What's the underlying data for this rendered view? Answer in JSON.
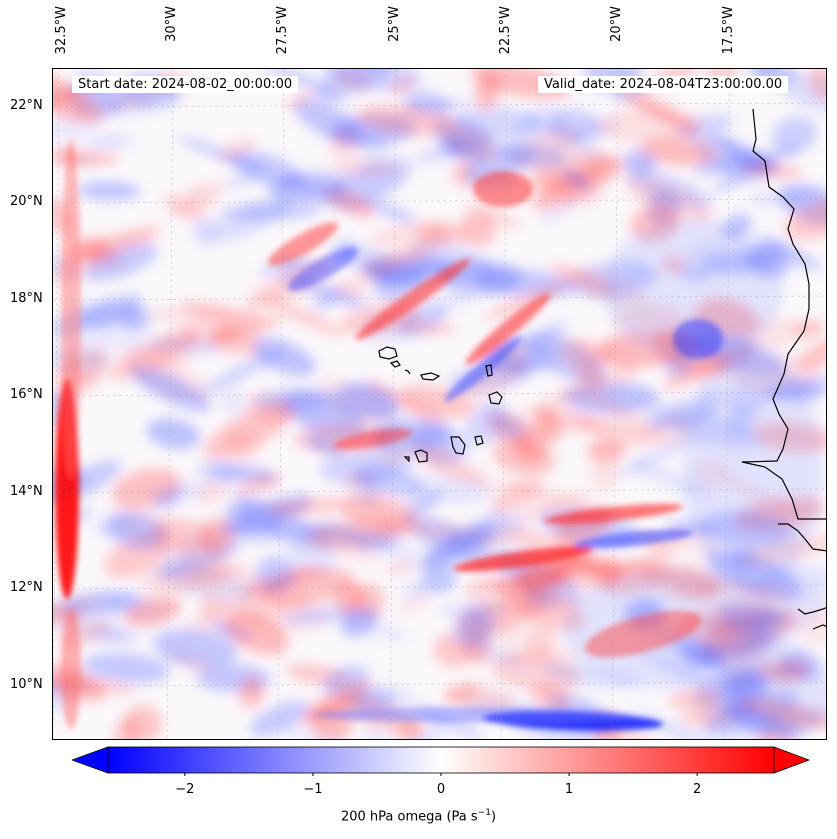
{
  "map": {
    "title_start": "Start date: 2024-08-02_00:00:00",
    "title_valid": "Valid_date: 2024-08-04T23:00:00.00",
    "lon_labels": [
      "32.5°W",
      "30°W",
      "27.5°W",
      "25°W",
      "22.5°W",
      "20°W",
      "17.5°W"
    ],
    "lat_labels": [
      "22°N",
      "20°N",
      "18°N",
      "16°N",
      "14°N",
      "12°N",
      "10°N"
    ],
    "extent": {
      "lon_min": -32.5,
      "lon_max": -15.1,
      "lat_min": 8.9,
      "lat_max": 22.8
    },
    "gridlines": true,
    "colormap": "bwr",
    "colors": {
      "min": "#0000ff",
      "mid": "#ffffff",
      "max": "#ff0000"
    }
  },
  "colorbar": {
    "label": "200 hPa omega (Pa s",
    "label_exp": "−1",
    "label_close": ")",
    "ticks": [
      "−2",
      "−1",
      "0",
      "1",
      "2"
    ],
    "tick_values": [
      -2,
      -1,
      0,
      1,
      2
    ],
    "range": [
      -2.6,
      2.6
    ],
    "extend": "both"
  }
}
